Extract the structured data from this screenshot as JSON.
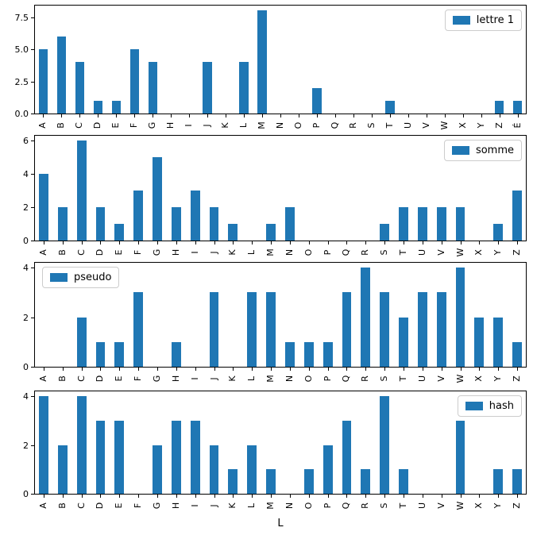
{
  "figure": {
    "background": "#ffffff",
    "bar_color": "#1f77b4",
    "spine_color": "#000000",
    "xlabel": "L"
  },
  "chart_data": [
    {
      "type": "bar",
      "legend": "lettre 1",
      "legend_position": "top-right",
      "categories": [
        "A",
        "B",
        "C",
        "D",
        "E",
        "F",
        "G",
        "H",
        "I",
        "J",
        "K",
        "L",
        "M",
        "N",
        "O",
        "P",
        "Q",
        "R",
        "S",
        "T",
        "U",
        "V",
        "W",
        "X",
        "Y",
        "Z",
        "É"
      ],
      "values": [
        5,
        6,
        4,
        1,
        1,
        5,
        4,
        0,
        0,
        4,
        0,
        4,
        8,
        0,
        0,
        2,
        0,
        0,
        0,
        1,
        0,
        0,
        0,
        0,
        0,
        1,
        1
      ],
      "ytick_labels": [
        "0.0",
        "2.5",
        "5.0",
        "7.5"
      ],
      "ytick_values": [
        0,
        2.5,
        5,
        7.5
      ],
      "ylim": [
        0,
        8.4
      ],
      "grid": false,
      "xlabel": ""
    },
    {
      "type": "bar",
      "legend": "somme",
      "legend_position": "top-right",
      "categories": [
        "A",
        "B",
        "C",
        "D",
        "E",
        "F",
        "G",
        "H",
        "I",
        "J",
        "K",
        "L",
        "M",
        "N",
        "O",
        "P",
        "Q",
        "R",
        "S",
        "T",
        "U",
        "V",
        "W",
        "X",
        "Y",
        "Z"
      ],
      "values": [
        4,
        2,
        6,
        2,
        1,
        3,
        5,
        2,
        3,
        2,
        1,
        0,
        1,
        2,
        0,
        0,
        0,
        0,
        1,
        2,
        2,
        2,
        2,
        0,
        1,
        3
      ],
      "ytick_labels": [
        "0",
        "2",
        "4",
        "6"
      ],
      "ytick_values": [
        0,
        2,
        4,
        6
      ],
      "ylim": [
        0,
        6.3
      ],
      "grid": false,
      "xlabel": ""
    },
    {
      "type": "bar",
      "legend": "pseudo",
      "legend_position": "top-left",
      "categories": [
        "A",
        "B",
        "C",
        "D",
        "E",
        "F",
        "G",
        "H",
        "I",
        "J",
        "K",
        "L",
        "M",
        "N",
        "O",
        "P",
        "Q",
        "R",
        "S",
        "T",
        "U",
        "V",
        "W",
        "X",
        "Y",
        "Z"
      ],
      "values": [
        0,
        0,
        2,
        1,
        1,
        3,
        0,
        1,
        0,
        3,
        0,
        3,
        3,
        1,
        1,
        1,
        3,
        4,
        3,
        2,
        3,
        3,
        4,
        2,
        2,
        1
      ],
      "ytick_labels": [
        "0",
        "2",
        "4"
      ],
      "ytick_values": [
        0,
        2,
        4
      ],
      "ylim": [
        0,
        4.2
      ],
      "grid": false,
      "xlabel": ""
    },
    {
      "type": "bar",
      "legend": "hash",
      "legend_position": "top-right",
      "categories": [
        "A",
        "B",
        "C",
        "D",
        "E",
        "F",
        "G",
        "H",
        "I",
        "J",
        "K",
        "L",
        "M",
        "N",
        "O",
        "P",
        "Q",
        "R",
        "S",
        "T",
        "U",
        "V",
        "W",
        "X",
        "Y",
        "Z"
      ],
      "values": [
        4,
        2,
        4,
        3,
        3,
        0,
        2,
        3,
        3,
        2,
        1,
        2,
        1,
        0,
        1,
        2,
        3,
        1,
        4,
        1,
        0,
        0,
        3,
        0,
        1,
        1
      ],
      "ytick_labels": [
        "0",
        "2",
        "4"
      ],
      "ytick_values": [
        0,
        2,
        4
      ],
      "ylim": [
        0,
        4.2
      ],
      "grid": false,
      "xlabel": "L"
    }
  ]
}
